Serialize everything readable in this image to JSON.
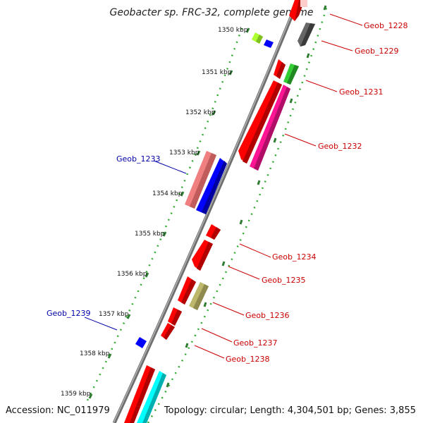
{
  "title": "Geobacter sp. FRC-32, complete genome",
  "footer": {
    "accession": "Accession: NC_011979",
    "topology": "Topology: circular; Length: 4,304,501 bp; Genes: 3,855"
  },
  "colors": {
    "backbone": "#7a7a7a",
    "tick_major": "#2e8b57",
    "tick_dot": "#229922",
    "label_forward": "#cc0000",
    "label_reverse": "#0000aa"
  },
  "kbp_ticks": [
    "1350 kbp",
    "1351 kbp",
    "1352 kbp",
    "1353 kbp",
    "1354 kbp",
    "1355 kbp",
    "1356 kbp",
    "1357 kbp",
    "1358 kbp",
    "1359 kbp"
  ],
  "genes": [
    {
      "name": "Geob_1228",
      "strand": "forward",
      "color": "#ff0000"
    },
    {
      "name": "Geob_1229",
      "strand": "forward",
      "color": "#606060"
    },
    {
      "name": "Geob_1231",
      "strand": "forward",
      "color": "#33cc33"
    },
    {
      "name": "Geob_1232",
      "strand": "forward",
      "color": "#ff1493"
    },
    {
      "name": "Geob_1233",
      "strand": "reverse",
      "color": "#f08080"
    },
    {
      "name": "Geob_1234",
      "strand": "forward",
      "color": "#ff0000"
    },
    {
      "name": "Geob_1235",
      "strand": "forward",
      "color": "#ff0000"
    },
    {
      "name": "Geob_1236",
      "strand": "forward",
      "color": "#bdb76b"
    },
    {
      "name": "Geob_1237",
      "strand": "forward",
      "color": "#ff0000"
    },
    {
      "name": "Geob_1238",
      "strand": "forward",
      "color": "#ff0000"
    },
    {
      "name": "Geob_1239",
      "strand": "reverse",
      "color": "#0000ff"
    }
  ]
}
